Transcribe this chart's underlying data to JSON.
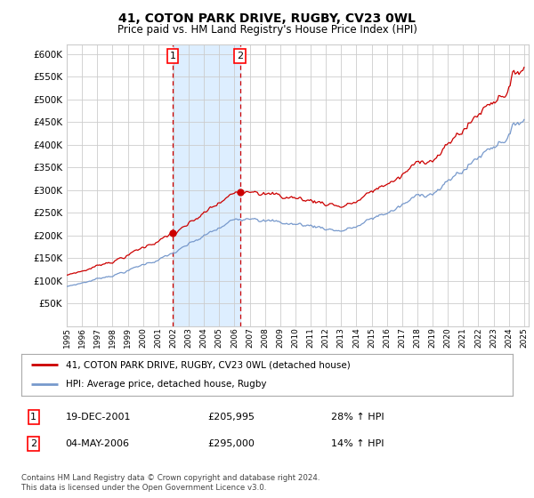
{
  "title": "41, COTON PARK DRIVE, RUGBY, CV23 0WL",
  "subtitle": "Price paid vs. HM Land Registry's House Price Index (HPI)",
  "legend_line1": "41, COTON PARK DRIVE, RUGBY, CV23 0WL (detached house)",
  "legend_line2": "HPI: Average price, detached house, Rugby",
  "annotation1_date": "19-DEC-2001",
  "annotation1_price": "£205,995",
  "annotation1_hpi": "28% ↑ HPI",
  "annotation2_date": "04-MAY-2006",
  "annotation2_price": "£295,000",
  "annotation2_hpi": "14% ↑ HPI",
  "footer": "Contains HM Land Registry data © Crown copyright and database right 2024.\nThis data is licensed under the Open Government Licence v3.0.",
  "red_color": "#cc0000",
  "blue_color": "#7799cc",
  "background_color": "#ffffff",
  "grid_color": "#cccccc",
  "shading_color": "#ddeeff",
  "sale1_year": 2001.96,
  "sale2_year": 2006.37,
  "sale1_price": 205995,
  "sale2_price": 295000,
  "ylim_min": 0,
  "ylim_max": 620000,
  "ytick_step": 50000,
  "xstart": 1995,
  "xend": 2025
}
